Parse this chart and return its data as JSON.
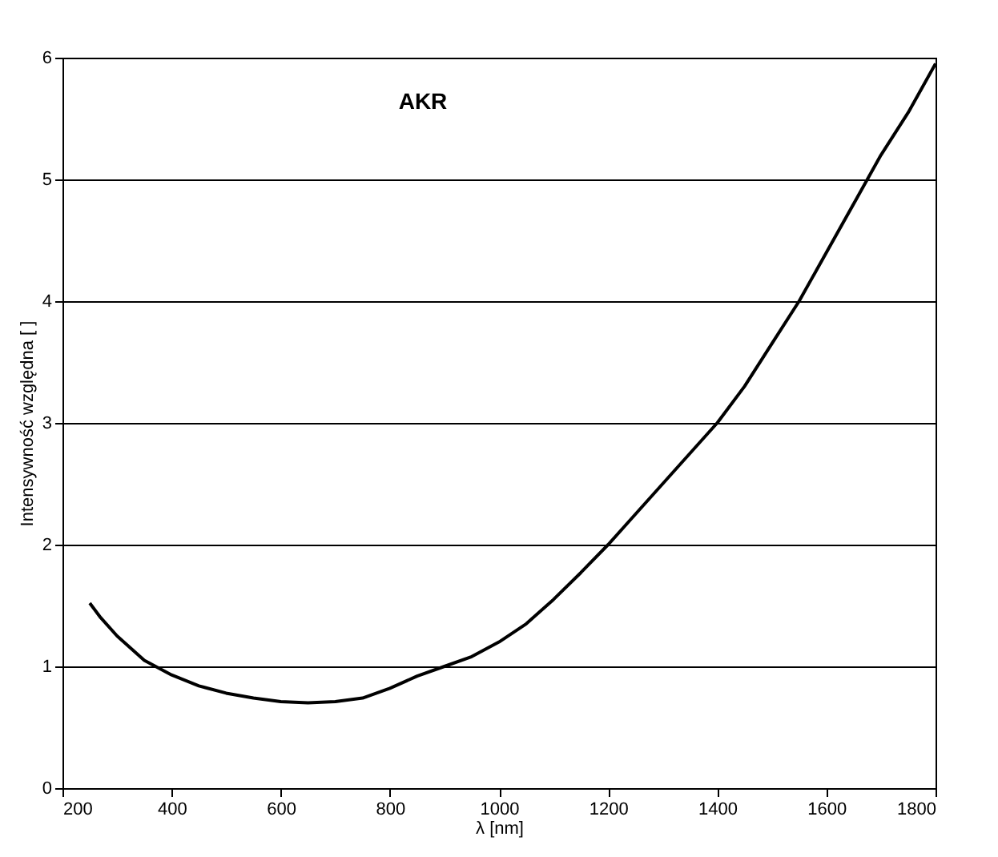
{
  "chart_data": {
    "type": "line",
    "title": "AKR",
    "xlabel": "λ [nm]",
    "ylabel": "Intensywność względna [ ]",
    "x": [
      250,
      270,
      300,
      350,
      400,
      450,
      500,
      550,
      600,
      650,
      700,
      750,
      800,
      850,
      900,
      950,
      1000,
      1050,
      1100,
      1150,
      1200,
      1250,
      1300,
      1350,
      1400,
      1450,
      1500,
      1550,
      1600,
      1650,
      1700,
      1750,
      1800
    ],
    "series": [
      {
        "color": "#000000",
        "values": [
          1.52,
          1.4,
          1.25,
          1.05,
          0.93,
          0.84,
          0.78,
          0.74,
          0.71,
          0.7,
          0.71,
          0.74,
          0.82,
          0.92,
          1.0,
          1.08,
          1.2,
          1.35,
          1.55,
          1.77,
          2.0,
          2.25,
          2.5,
          2.75,
          3.0,
          3.3,
          3.65,
          4.0,
          4.4,
          4.8,
          5.2,
          5.55,
          5.95
        ]
      }
    ],
    "xlim": [
      200,
      1800
    ],
    "xticks": [
      200,
      400,
      600,
      800,
      1000,
      1200,
      1400,
      1600,
      1800
    ],
    "ylim": [
      0,
      6
    ],
    "yticks": [
      0,
      1,
      2,
      3,
      4,
      5,
      6
    ],
    "grid": "y",
    "line_style": "solid"
  }
}
